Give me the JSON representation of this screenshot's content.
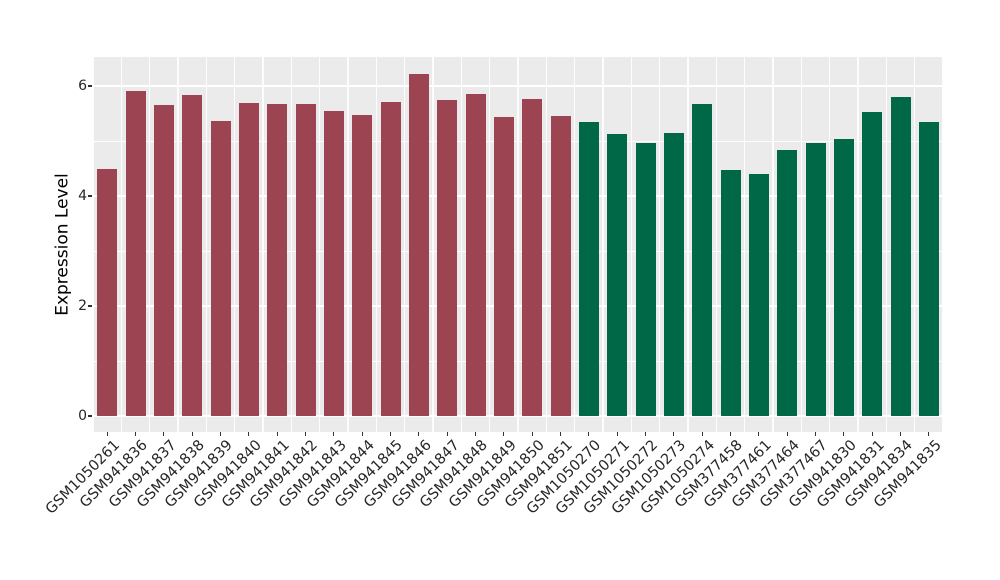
{
  "chart_data": {
    "type": "bar",
    "title": "",
    "xlabel": "",
    "ylabel": "Expression Level",
    "ylim": [
      0,
      6.55
    ],
    "yticks": [
      0,
      2,
      4,
      6
    ],
    "minor_gridlines": [
      1,
      3,
      5
    ],
    "grid": true,
    "legend_position": "none",
    "panel_background": "#EBEBEB",
    "gridline_color": "#FFFFFF",
    "axis_tick_color": "#333333",
    "tick_label_color": "#262626",
    "categories": [
      "GSM1050261",
      "GSM941836",
      "GSM941837",
      "GSM941838",
      "GSM941839",
      "GSM941840",
      "GSM941841",
      "GSM941842",
      "GSM941843",
      "GSM941844",
      "GSM941845",
      "GSM941846",
      "GSM941847",
      "GSM941848",
      "GSM941849",
      "GSM941850",
      "GSM941851",
      "GSM1050270",
      "GSM1050271",
      "GSM1050272",
      "GSM1050273",
      "GSM1050274",
      "GSM377458",
      "GSM377461",
      "GSM377464",
      "GSM377467",
      "GSM941830",
      "GSM941831",
      "GSM941834",
      "GSM941835"
    ],
    "values": [
      4.5,
      5.91,
      5.65,
      5.83,
      5.37,
      5.69,
      5.67,
      5.67,
      5.55,
      5.47,
      5.71,
      6.22,
      5.75,
      5.85,
      5.44,
      5.77,
      5.45,
      5.35,
      5.13,
      4.96,
      5.14,
      5.67,
      4.47,
      4.4,
      4.84,
      4.97,
      5.04,
      5.53,
      5.8,
      5.35
    ],
    "group_index": [
      0,
      0,
      0,
      0,
      0,
      0,
      0,
      0,
      0,
      0,
      0,
      0,
      0,
      0,
      0,
      0,
      0,
      1,
      1,
      1,
      1,
      1,
      1,
      1,
      1,
      1,
      1,
      1,
      1,
      1
    ],
    "groups": [
      {
        "name": "group-red",
        "color": "#9C4452"
      },
      {
        "name": "group-green",
        "color": "#006747"
      }
    ]
  }
}
